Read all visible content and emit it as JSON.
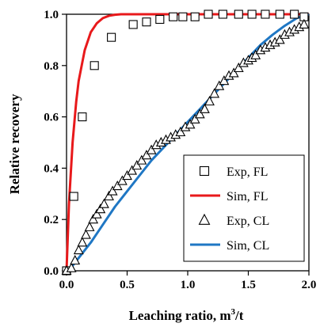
{
  "chart_data": {
    "type": "scatter",
    "xlabel": "Leaching ratio, m³/t",
    "xlabel_main": "Leaching ratio, m",
    "xlabel_sup": "3",
    "xlabel_tail": "/t",
    "ylabel": "Relative recovery",
    "xlim": [
      0,
      2
    ],
    "ylim": [
      0,
      1
    ],
    "xticks": [
      0,
      0.5,
      1,
      1.5,
      2
    ],
    "yticks": [
      0,
      0.2,
      0.4,
      0.6,
      0.8,
      1
    ],
    "xtick_labels": [
      "0.0",
      "0.5",
      "1.0",
      "1.5",
      "2.0"
    ],
    "ytick_labels": [
      "0.0",
      "0.2",
      "0.4",
      "0.6",
      "0.8",
      "1.0"
    ],
    "grid": false,
    "legend_position": "bottom-right",
    "series": [
      {
        "name": "Exp, FL",
        "kind": "markers",
        "marker": "square",
        "color": "#000000",
        "x": [
          0.0,
          0.06,
          0.13,
          0.23,
          0.37,
          0.55,
          0.66,
          0.77,
          0.88,
          0.96,
          1.06,
          1.17,
          1.29,
          1.42,
          1.53,
          1.64,
          1.76,
          1.88,
          1.96
        ],
        "y": [
          0.0,
          0.29,
          0.6,
          0.8,
          0.91,
          0.96,
          0.97,
          0.98,
          0.99,
          0.99,
          0.99,
          1.0,
          1.0,
          1.0,
          1.0,
          1.0,
          1.0,
          1.0,
          0.99
        ]
      },
      {
        "name": "Sim, FL",
        "kind": "line",
        "color": "#e8191b",
        "x": [
          0.0,
          0.02,
          0.05,
          0.08,
          0.1,
          0.15,
          0.2,
          0.25,
          0.3,
          0.35,
          0.4,
          0.45,
          0.5,
          0.6,
          0.8,
          1.0,
          1.5,
          2.0
        ],
        "y": [
          0.0,
          0.26,
          0.5,
          0.66,
          0.74,
          0.86,
          0.93,
          0.965,
          0.985,
          0.994,
          0.998,
          1.0,
          1.0,
          1.0,
          1.0,
          1.0,
          1.0,
          1.0
        ]
      },
      {
        "name": "Exp, CL",
        "kind": "markers",
        "marker": "triangle",
        "color": "#000000",
        "x": [
          0.0,
          0.04,
          0.07,
          0.1,
          0.13,
          0.16,
          0.19,
          0.22,
          0.25,
          0.28,
          0.31,
          0.35,
          0.38,
          0.42,
          0.46,
          0.5,
          0.54,
          0.58,
          0.62,
          0.66,
          0.7,
          0.74,
          0.78,
          0.82,
          0.86,
          0.9,
          0.94,
          0.98,
          1.02,
          1.06,
          1.1,
          1.14,
          1.18,
          1.22,
          1.26,
          1.3,
          1.34,
          1.38,
          1.42,
          1.46,
          1.5,
          1.53,
          1.56,
          1.6,
          1.64,
          1.68,
          1.72,
          1.76,
          1.8,
          1.84,
          1.88,
          1.92,
          1.96
        ],
        "y": [
          0.0,
          0.01,
          0.04,
          0.08,
          0.11,
          0.14,
          0.17,
          0.2,
          0.22,
          0.24,
          0.26,
          0.29,
          0.31,
          0.33,
          0.35,
          0.37,
          0.39,
          0.41,
          0.43,
          0.45,
          0.47,
          0.49,
          0.5,
          0.51,
          0.52,
          0.53,
          0.54,
          0.56,
          0.57,
          0.59,
          0.61,
          0.63,
          0.66,
          0.69,
          0.72,
          0.74,
          0.76,
          0.77,
          0.79,
          0.81,
          0.82,
          0.83,
          0.84,
          0.86,
          0.87,
          0.88,
          0.89,
          0.9,
          0.92,
          0.93,
          0.94,
          0.95,
          0.96
        ]
      },
      {
        "name": "Sim, CL",
        "kind": "line",
        "color": "#1f77c4",
        "x": [
          0.0,
          0.05,
          0.1,
          0.2,
          0.3,
          0.4,
          0.5,
          0.6,
          0.7,
          0.8,
          0.9,
          1.0,
          1.1,
          1.2,
          1.3,
          1.4,
          1.5,
          1.6,
          1.7,
          1.8,
          1.9,
          2.0
        ],
        "y": [
          0.0,
          0.02,
          0.05,
          0.11,
          0.18,
          0.25,
          0.31,
          0.37,
          0.43,
          0.48,
          0.53,
          0.58,
          0.63,
          0.68,
          0.73,
          0.78,
          0.83,
          0.88,
          0.92,
          0.955,
          0.985,
          1.0
        ]
      }
    ]
  }
}
